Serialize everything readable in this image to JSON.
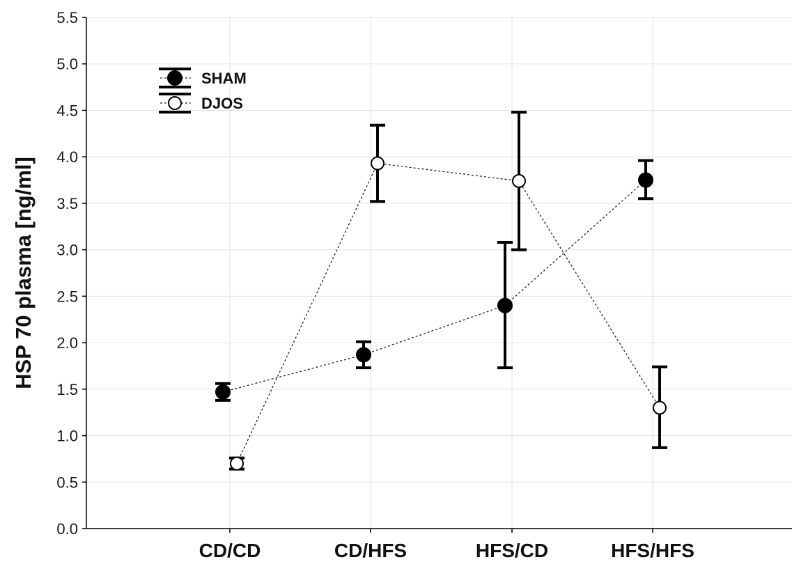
{
  "chart_data": {
    "type": "line",
    "ylabel": "HSP 70 plasma [ng/ml]",
    "xlabel": "",
    "categories": [
      "CD/CD",
      "CD/HFS",
      "HFS/CD",
      "HFS/HFS"
    ],
    "ylim": [
      0.0,
      5.5
    ],
    "yticks": [
      "0.0",
      "0.5",
      "1.0",
      "1.5",
      "2.0",
      "2.5",
      "3.0",
      "3.5",
      "4.0",
      "4.5",
      "5.0",
      "5.5"
    ],
    "grid": true,
    "legend_position": "top-left",
    "series": [
      {
        "name": "SHAM",
        "marker": "filled-circle",
        "values": [
          1.47,
          1.87,
          2.4,
          3.75
        ],
        "err_low": [
          1.38,
          1.73,
          1.73,
          3.55
        ],
        "err_high": [
          1.56,
          2.01,
          3.08,
          3.96
        ]
      },
      {
        "name": "DJOS",
        "marker": "open-circle",
        "values": [
          0.7,
          3.93,
          3.74,
          1.3
        ],
        "err_low": [
          0.64,
          3.52,
          3.0,
          0.87
        ],
        "err_high": [
          0.76,
          4.34,
          4.48,
          1.74
        ]
      }
    ]
  }
}
